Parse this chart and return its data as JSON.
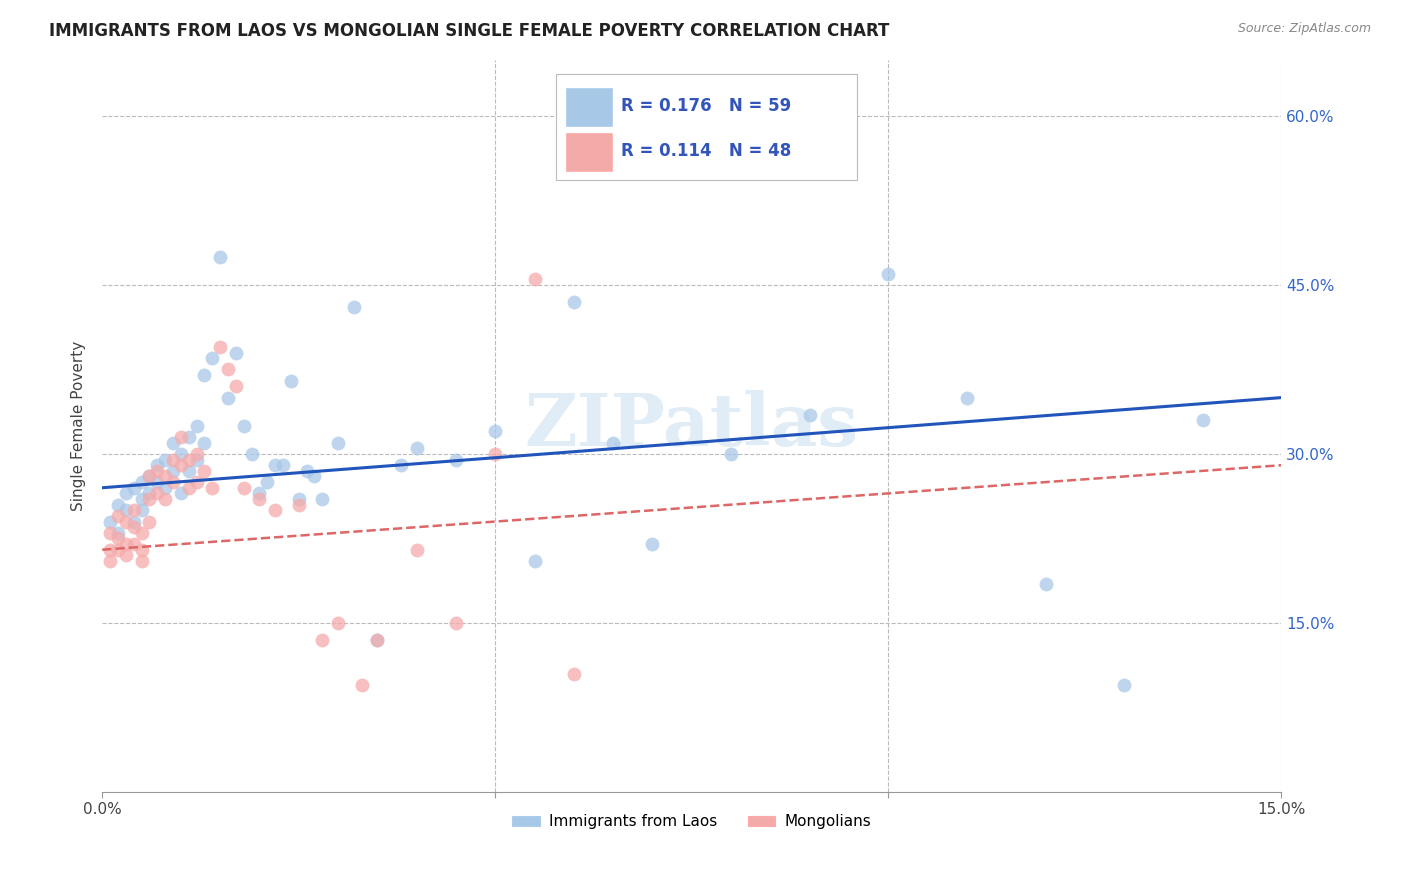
{
  "title": "IMMIGRANTS FROM LAOS VS MONGOLIAN SINGLE FEMALE POVERTY CORRELATION CHART",
  "source": "Source: ZipAtlas.com",
  "ylabel": "Single Female Poverty",
  "xlim": [
    0.0,
    0.15
  ],
  "ylim": [
    0.0,
    0.65
  ],
  "blue_R": 0.176,
  "blue_N": 59,
  "pink_R": 0.114,
  "pink_N": 48,
  "blue_color": "#A8C8E8",
  "pink_color": "#F5AAAA",
  "blue_line_color": "#2255BB",
  "pink_line_color": "#DD6666",
  "watermark": "ZIPatlas",
  "legend_blue_label": "Immigrants from Laos",
  "legend_pink_label": "Mongolians",
  "blue_x": [
    0.001,
    0.002,
    0.002,
    0.003,
    0.003,
    0.004,
    0.004,
    0.005,
    0.005,
    0.005,
    0.006,
    0.006,
    0.007,
    0.007,
    0.008,
    0.008,
    0.009,
    0.009,
    0.01,
    0.01,
    0.011,
    0.011,
    0.012,
    0.012,
    0.013,
    0.013,
    0.014,
    0.015,
    0.016,
    0.017,
    0.018,
    0.019,
    0.02,
    0.021,
    0.022,
    0.023,
    0.024,
    0.025,
    0.026,
    0.027,
    0.028,
    0.03,
    0.032,
    0.035,
    0.038,
    0.04,
    0.045,
    0.05,
    0.055,
    0.06,
    0.065,
    0.07,
    0.08,
    0.09,
    0.1,
    0.11,
    0.12,
    0.13,
    0.14
  ],
  "blue_y": [
    0.24,
    0.255,
    0.23,
    0.265,
    0.25,
    0.27,
    0.24,
    0.275,
    0.26,
    0.25,
    0.28,
    0.265,
    0.29,
    0.275,
    0.295,
    0.27,
    0.31,
    0.285,
    0.3,
    0.265,
    0.315,
    0.285,
    0.325,
    0.295,
    0.37,
    0.31,
    0.385,
    0.475,
    0.35,
    0.39,
    0.325,
    0.3,
    0.265,
    0.275,
    0.29,
    0.29,
    0.365,
    0.26,
    0.285,
    0.28,
    0.26,
    0.31,
    0.43,
    0.135,
    0.29,
    0.305,
    0.295,
    0.32,
    0.205,
    0.435,
    0.31,
    0.22,
    0.3,
    0.335,
    0.46,
    0.35,
    0.185,
    0.095,
    0.33
  ],
  "pink_x": [
    0.001,
    0.001,
    0.001,
    0.002,
    0.002,
    0.002,
    0.003,
    0.003,
    0.003,
    0.004,
    0.004,
    0.004,
    0.005,
    0.005,
    0.005,
    0.006,
    0.006,
    0.006,
    0.007,
    0.007,
    0.008,
    0.008,
    0.009,
    0.009,
    0.01,
    0.01,
    0.011,
    0.011,
    0.012,
    0.012,
    0.013,
    0.014,
    0.015,
    0.016,
    0.017,
    0.018,
    0.02,
    0.022,
    0.025,
    0.028,
    0.03,
    0.033,
    0.035,
    0.04,
    0.045,
    0.05,
    0.055,
    0.06
  ],
  "pink_y": [
    0.23,
    0.215,
    0.205,
    0.245,
    0.225,
    0.215,
    0.24,
    0.22,
    0.21,
    0.25,
    0.235,
    0.22,
    0.23,
    0.215,
    0.205,
    0.28,
    0.26,
    0.24,
    0.285,
    0.265,
    0.28,
    0.26,
    0.295,
    0.275,
    0.315,
    0.29,
    0.295,
    0.27,
    0.3,
    0.275,
    0.285,
    0.27,
    0.395,
    0.375,
    0.36,
    0.27,
    0.26,
    0.25,
    0.255,
    0.135,
    0.15,
    0.095,
    0.135,
    0.215,
    0.15,
    0.3,
    0.455,
    0.105
  ]
}
